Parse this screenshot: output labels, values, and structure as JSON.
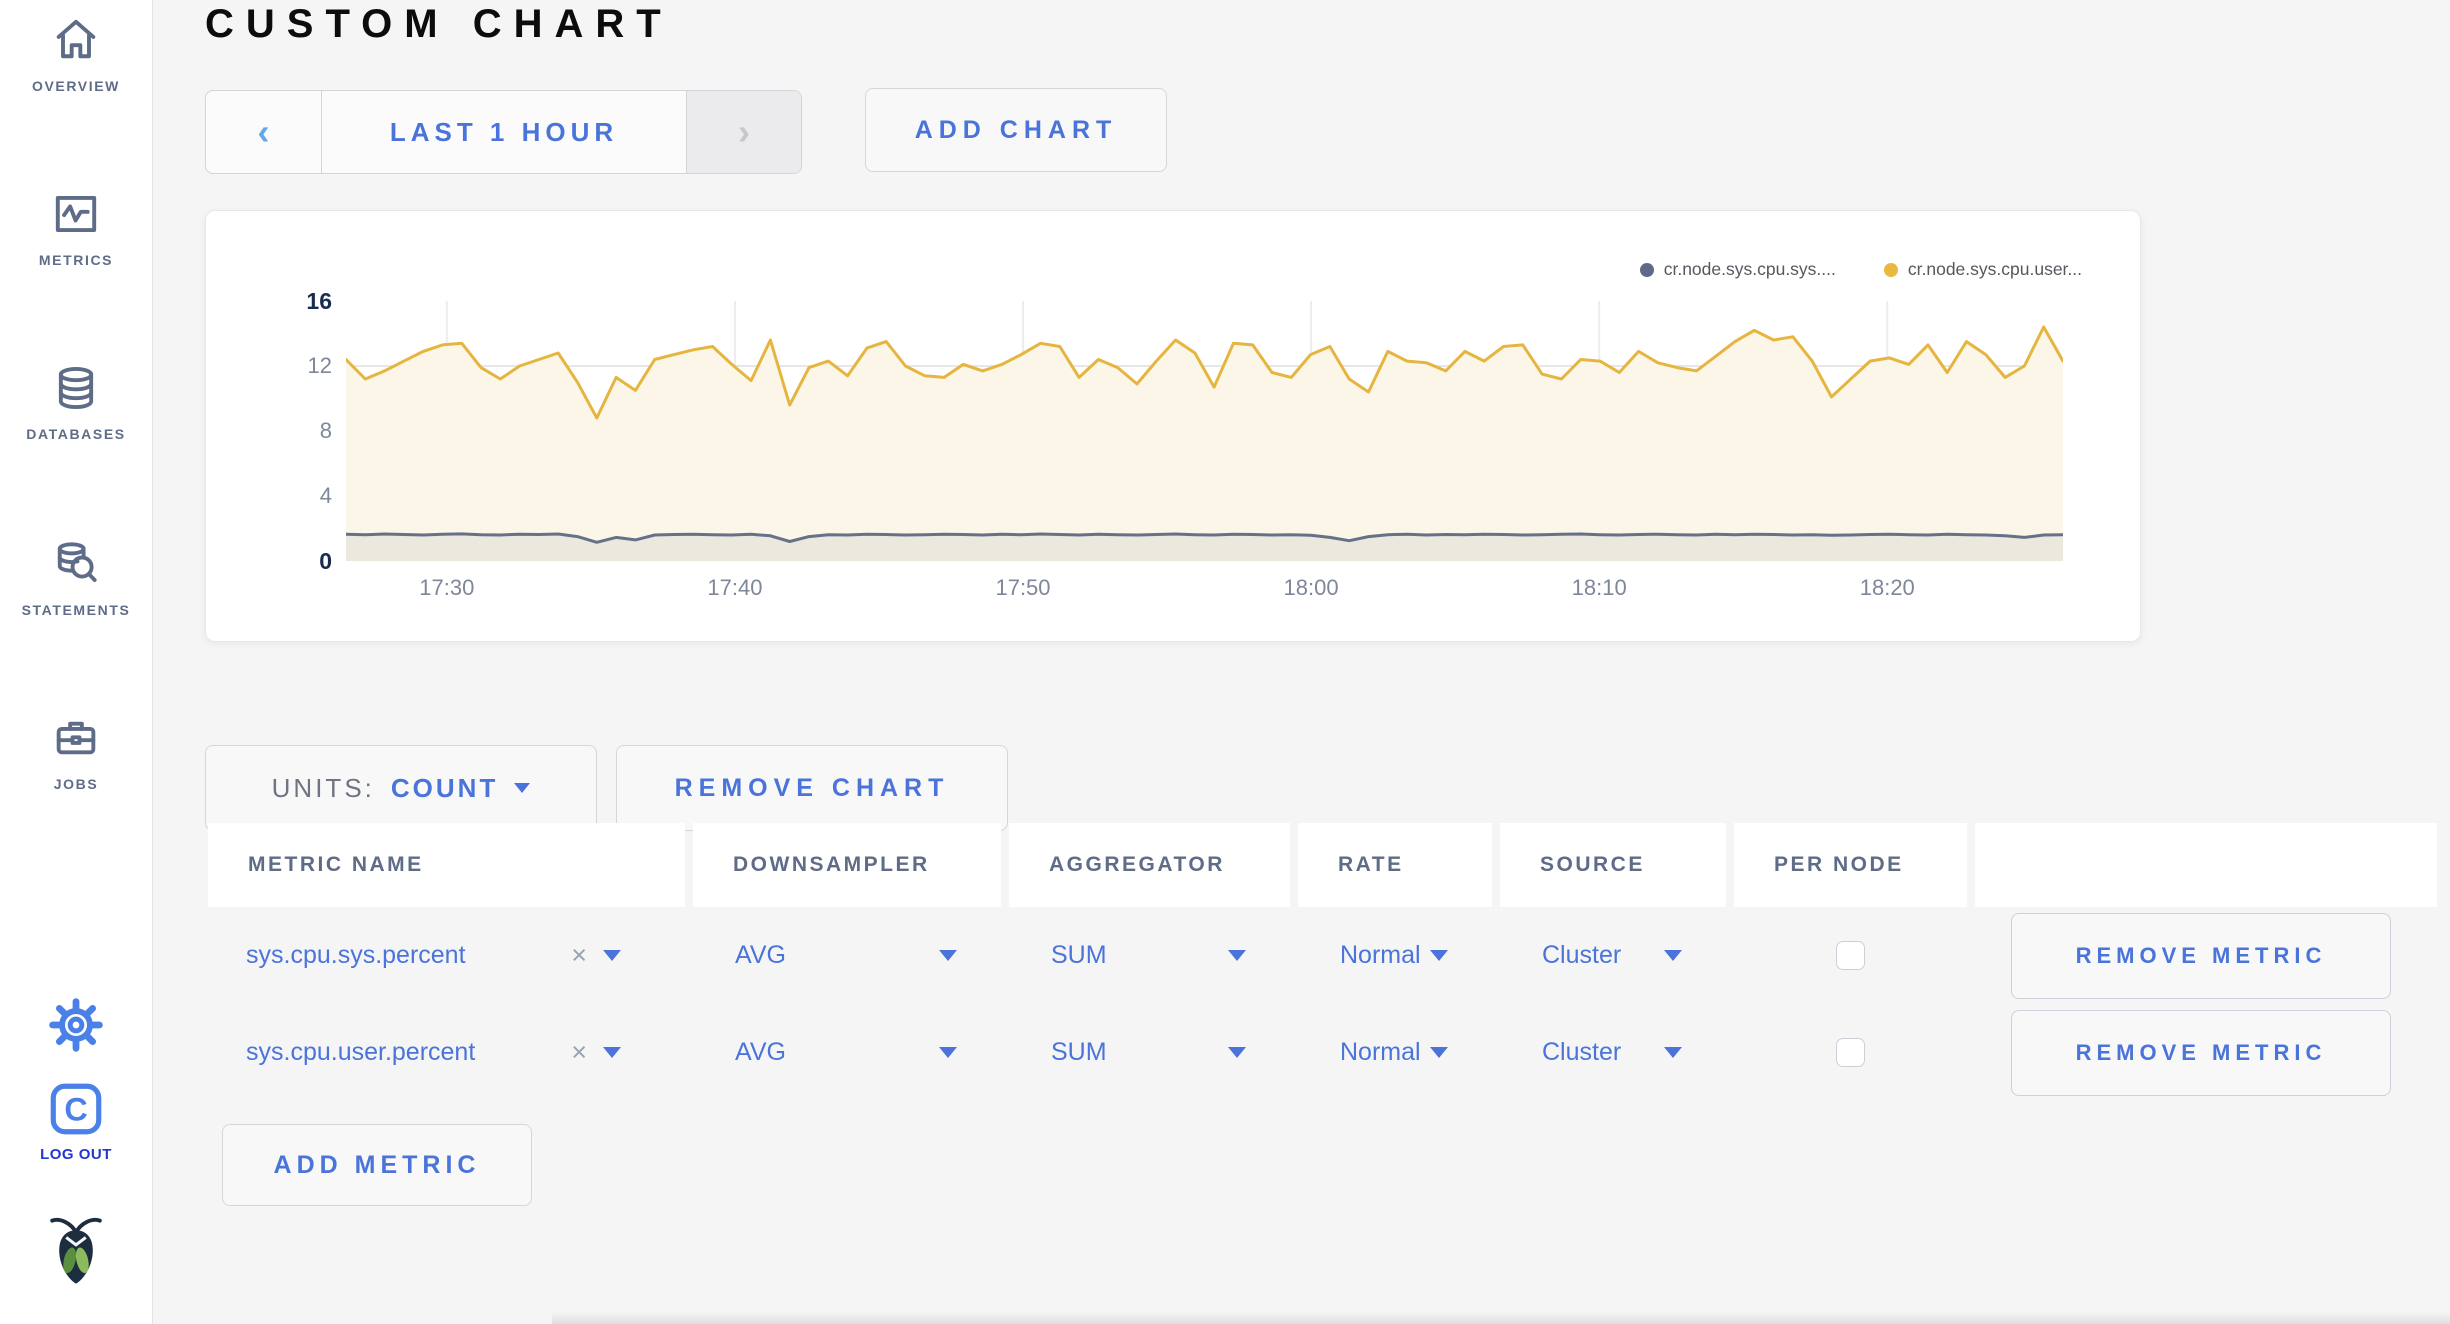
{
  "header": {
    "title": "CUSTOM CHART"
  },
  "sidebar": {
    "items": [
      {
        "label": "OVERVIEW",
        "icon": "home-icon"
      },
      {
        "label": "METRICS",
        "icon": "metrics-icon"
      },
      {
        "label": "DATABASES",
        "icon": "database-icon"
      },
      {
        "label": "STATEMENTS",
        "icon": "statements-icon"
      },
      {
        "label": "JOBS",
        "icon": "briefcase-icon"
      }
    ],
    "settings_icon": "gear-icon",
    "logout_label": "LOG OUT",
    "logo_letter": "C",
    "brand_icon": "cockroach-bug-icon"
  },
  "timebar": {
    "prev_icon": "chevron-left-icon",
    "range_label": "LAST 1 HOUR",
    "next_icon": "chevron-right-icon",
    "add_chart_label": "ADD CHART"
  },
  "units": {
    "prefix": "UNITS:",
    "value": "COUNT"
  },
  "remove_chart_label": "REMOVE CHART",
  "add_metric_label": "ADD METRIC",
  "colors": {
    "accent_blue": "#4a74d9",
    "series_sys": "#667189",
    "series_user": "#e5b53f",
    "logout_blue": "#2336d4",
    "sidebar_slate": "#5f6c87"
  },
  "chart_data": {
    "type": "area",
    "title": "",
    "xlabel": "",
    "ylabel": "",
    "y_max": 16,
    "y_ticks": [
      0,
      4,
      8,
      12,
      16
    ],
    "y_gridlines": [
      4,
      8,
      12
    ],
    "x_span_minutes": [
      0,
      59.6
    ],
    "x_ticks": [
      "17:30",
      "17:40",
      "17:50",
      "18:00",
      "18:10",
      "18:20"
    ],
    "x_tick_minutes": [
      3.5,
      13.5,
      23.5,
      33.5,
      43.5,
      53.5
    ],
    "grid": true,
    "legend_position": "top-right",
    "series": [
      {
        "name": "cr.node.sys.cpu.sys....",
        "color": "#667189",
        "dot_color": "#5e6b88",
        "fill": "rgba(95,107,136,0.10)",
        "values": [
          1.65,
          1.62,
          1.66,
          1.63,
          1.6,
          1.64,
          1.67,
          1.62,
          1.6,
          1.65,
          1.63,
          1.66,
          1.5,
          1.15,
          1.45,
          1.3,
          1.6,
          1.63,
          1.65,
          1.62,
          1.6,
          1.64,
          1.55,
          1.2,
          1.5,
          1.62,
          1.6,
          1.65,
          1.63,
          1.6,
          1.62,
          1.65,
          1.63,
          1.6,
          1.64,
          1.62,
          1.66,
          1.63,
          1.6,
          1.65,
          1.62,
          1.6,
          1.63,
          1.66,
          1.62,
          1.6,
          1.65,
          1.63,
          1.6,
          1.62,
          1.58,
          1.45,
          1.25,
          1.5,
          1.62,
          1.65,
          1.6,
          1.63,
          1.62,
          1.65,
          1.63,
          1.6,
          1.62,
          1.64,
          1.66,
          1.62,
          1.6,
          1.63,
          1.65,
          1.62,
          1.6,
          1.64,
          1.62,
          1.65,
          1.63,
          1.6,
          1.62,
          1.58,
          1.6,
          1.63,
          1.65,
          1.62,
          1.6,
          1.64,
          1.62,
          1.6,
          1.55,
          1.45,
          1.6,
          1.62
        ]
      },
      {
        "name": "cr.node.sys.cpu.user...",
        "color": "#e5b53f",
        "dot_color": "#eab83e",
        "fill": "#fbf6e7",
        "values": [
          12.4,
          11.2,
          11.7,
          12.3,
          12.9,
          13.3,
          13.4,
          11.9,
          11.2,
          12.0,
          12.4,
          12.8,
          11.0,
          8.8,
          11.3,
          10.5,
          12.4,
          12.7,
          13.0,
          13.2,
          12.1,
          11.1,
          13.6,
          9.6,
          11.9,
          12.3,
          11.4,
          13.1,
          13.5,
          12.0,
          11.4,
          11.3,
          12.1,
          11.7,
          12.1,
          12.7,
          13.4,
          13.2,
          11.3,
          12.4,
          11.9,
          10.9,
          12.3,
          13.6,
          12.8,
          10.7,
          13.4,
          13.3,
          11.6,
          11.3,
          12.7,
          13.2,
          11.2,
          10.4,
          12.9,
          12.3,
          12.2,
          11.7,
          12.9,
          12.3,
          13.2,
          13.3,
          11.5,
          11.2,
          12.4,
          12.3,
          11.6,
          12.9,
          12.2,
          11.9,
          11.7,
          12.6,
          13.5,
          14.2,
          13.6,
          13.8,
          12.3,
          10.1,
          11.2,
          12.3,
          12.5,
          12.1,
          13.3,
          11.6,
          13.5,
          12.7,
          11.3,
          12.0,
          14.4,
          12.3
        ]
      }
    ]
  },
  "table": {
    "columns": [
      "METRIC NAME",
      "DOWNSAMPLER",
      "AGGREGATOR",
      "RATE",
      "SOURCE",
      "PER NODE",
      ""
    ],
    "rows": [
      {
        "metric_name": "sys.cpu.sys.percent",
        "downsampler": "AVG",
        "aggregator": "SUM",
        "rate": "Normal",
        "source": "Cluster",
        "per_node_checked": false,
        "remove_label": "REMOVE METRIC"
      },
      {
        "metric_name": "sys.cpu.user.percent",
        "downsampler": "AVG",
        "aggregator": "SUM",
        "rate": "Normal",
        "source": "Cluster",
        "per_node_checked": false,
        "remove_label": "REMOVE METRIC"
      }
    ]
  }
}
